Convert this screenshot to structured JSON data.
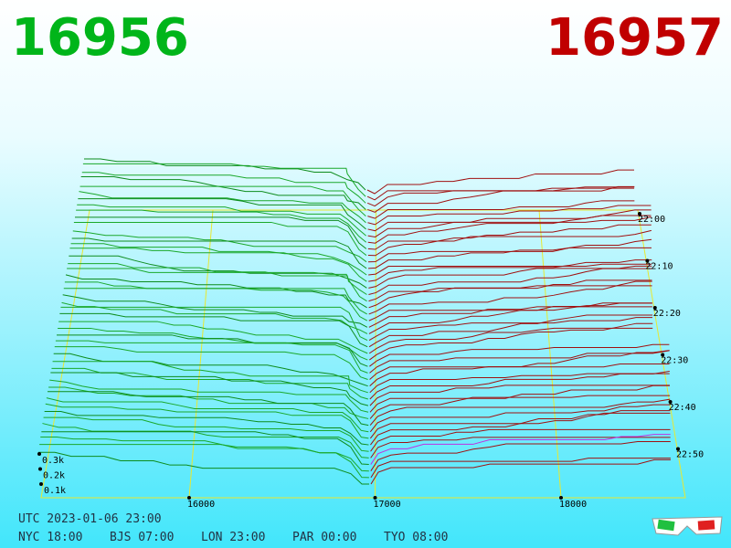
{
  "header": {
    "bid": 16956,
    "ask": 16957
  },
  "price_axis": {
    "ticks": [
      16000,
      17000,
      18000
    ]
  },
  "time_axis": {
    "labels": [
      "22:00",
      "22:10",
      "22:20",
      "22:30",
      "22:40",
      "22:50"
    ]
  },
  "volume_axis": {
    "labels": [
      "0.3k",
      "0.2k",
      "0.1k"
    ]
  },
  "footer": {
    "utc": "UTC 2023-01-06 23:00",
    "zones": [
      "NYC 18:00",
      "BJS 07:00",
      "LON 23:00",
      "PAR 00:00",
      "TYO 08:00"
    ]
  }
}
